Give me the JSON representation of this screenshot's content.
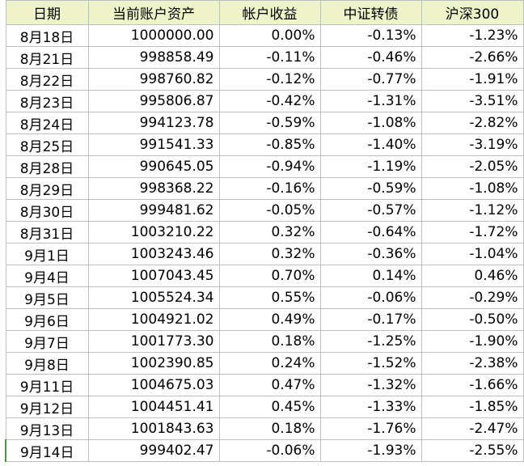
{
  "table": {
    "header": [
      "日期",
      "当前账户资产",
      "帐户收益",
      "中证转债",
      "沪深300"
    ],
    "rows": [
      [
        "8月18日",
        "1000000.00",
        "0.00%",
        "-0.13%",
        "-1.23%"
      ],
      [
        "8月21日",
        "998858.49",
        "-0.11%",
        "-0.46%",
        "-2.66%"
      ],
      [
        "8月22日",
        "998760.82",
        "-0.12%",
        "-0.77%",
        "-1.91%"
      ],
      [
        "8月23日",
        "995806.87",
        "-0.42%",
        "-1.31%",
        "-3.51%"
      ],
      [
        "8月24日",
        "994123.78",
        "-0.59%",
        "-1.08%",
        "-2.82%"
      ],
      [
        "8月25日",
        "991541.33",
        "-0.85%",
        "-1.40%",
        "-3.19%"
      ],
      [
        "8月28日",
        "990645.05",
        "-0.94%",
        "-1.19%",
        "-2.05%"
      ],
      [
        "8月29日",
        "998368.22",
        "-0.16%",
        "-0.59%",
        "-1.08%"
      ],
      [
        "8月30日",
        "999481.62",
        "-0.05%",
        "-0.57%",
        "-1.12%"
      ],
      [
        "8月31日",
        "1003210.22",
        "0.32%",
        "-0.64%",
        "-1.72%"
      ],
      [
        "9月1日",
        "1003243.46",
        "0.32%",
        "-0.36%",
        "-1.04%"
      ],
      [
        "9月4日",
        "1007043.45",
        "0.70%",
        "0.14%",
        "0.46%"
      ],
      [
        "9月5日",
        "1005524.34",
        "0.55%",
        "-0.06%",
        "-0.29%"
      ],
      [
        "9月6日",
        "1004921.02",
        "0.49%",
        "-0.17%",
        "-0.50%"
      ],
      [
        "9月7日",
        "1001773.30",
        "0.18%",
        "-1.25%",
        "-1.90%"
      ],
      [
        "9月8日",
        "1002390.85",
        "0.24%",
        "-1.52%",
        "-2.38%"
      ],
      [
        "9月11日",
        "1004675.03",
        "0.47%",
        "-1.32%",
        "-1.66%"
      ],
      [
        "9月12日",
        "1004451.41",
        "0.45%",
        "-1.33%",
        "-1.85%"
      ],
      [
        "9月13日",
        "1001843.63",
        "0.18%",
        "-1.76%",
        "-2.47%"
      ],
      [
        "9月14日",
        "999402.47",
        "-0.06%",
        "-1.93%",
        "-2.55%"
      ]
    ]
  }
}
